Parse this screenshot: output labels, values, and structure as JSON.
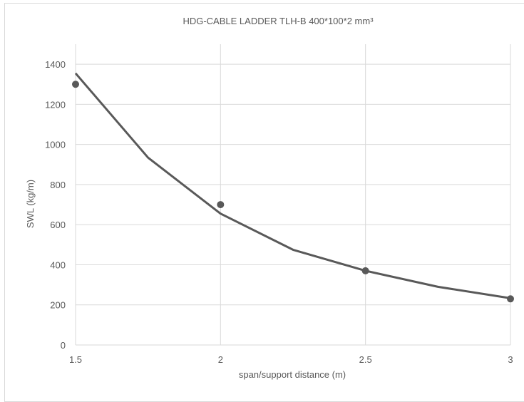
{
  "chart_data": {
    "type": "scatter",
    "title": "HDG-CABLE LADDER TLH-B 400*100*2 mm³",
    "xlabel": "span/support distance (m)",
    "ylabel": "SWL (kg/m)",
    "xlim": [
      1.5,
      3
    ],
    "ylim": [
      0,
      1500
    ],
    "x_ticks": [
      "1.5",
      "2",
      "2.5",
      "3"
    ],
    "y_ticks": [
      "0",
      "200",
      "400",
      "600",
      "800",
      "1000",
      "1200",
      "1400"
    ],
    "grid": true,
    "legend": "none",
    "series": [
      {
        "x": [
          1.5,
          2,
          2.5,
          3
        ],
        "y": [
          1300,
          700,
          370,
          230
        ],
        "color": "#595959"
      }
    ],
    "trendline": {
      "type": "power",
      "x": [
        1.5,
        1.75,
        2,
        2.25,
        2.5,
        2.75,
        3
      ],
      "y": [
        1355,
        934,
        655,
        475,
        370,
        290,
        233
      ],
      "color": "#595959"
    }
  }
}
